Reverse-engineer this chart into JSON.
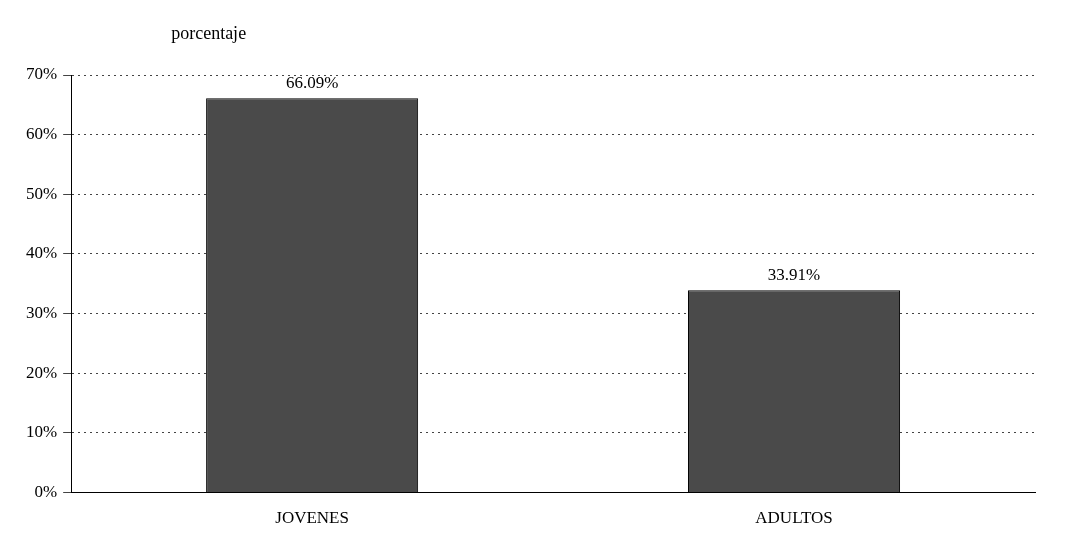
{
  "chart_data": {
    "type": "bar",
    "ylabel": "porcentaje",
    "categories": [
      "JOVENES",
      "ADULTOS"
    ],
    "values": [
      66.09,
      33.91
    ],
    "value_labels": [
      "66.09%",
      "33.91%"
    ],
    "color": "#4a4a4a",
    "ylim": [
      0,
      70
    ],
    "yticks": [
      {
        "value": 0,
        "label": "0%"
      },
      {
        "value": 10,
        "label": "10%"
      },
      {
        "value": 20,
        "label": "20%"
      },
      {
        "value": 30,
        "label": "30%"
      },
      {
        "value": 40,
        "label": "40%"
      },
      {
        "value": 50,
        "label": "50%"
      },
      {
        "value": 60,
        "label": "60%"
      },
      {
        "value": 70,
        "label": "70%"
      }
    ],
    "grid": "y",
    "legend": false
  }
}
